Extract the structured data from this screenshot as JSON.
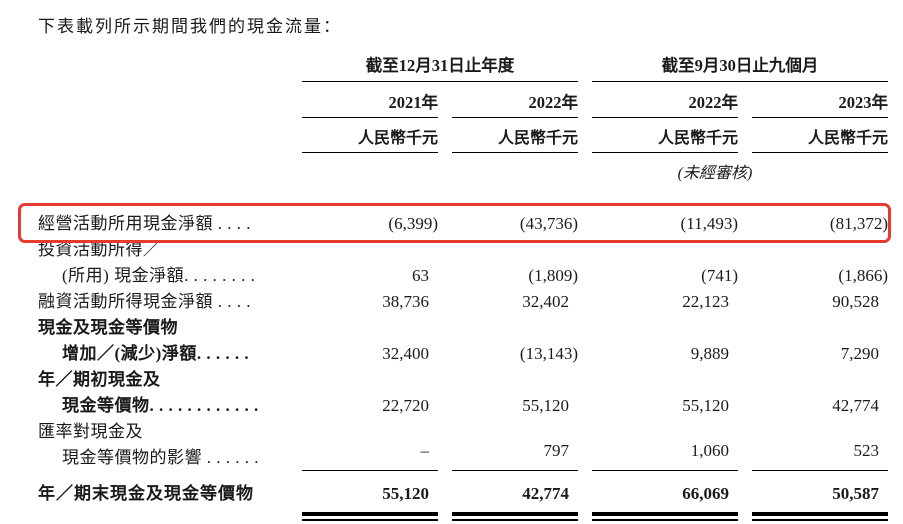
{
  "page": {
    "background": "#ffffff",
    "text_color": "#1a1a1a"
  },
  "title": "下表載列所示期間我們的現金流量：",
  "highlight_color": "#e8392e",
  "table": {
    "groups": [
      {
        "label": "截至12月31日止年度"
      },
      {
        "label": "截至9月30日止九個月"
      }
    ],
    "years": [
      "2021年",
      "2022年",
      "2022年",
      "2023年"
    ],
    "unit_label": "人民幣千元",
    "unaudited_note": "(未經審核)",
    "rows": [
      {
        "label1": "經營活動所用現金淨額 . . . .",
        "values": [
          "(6,399)",
          "(43,736)",
          "(11,493)",
          "(81,372)"
        ],
        "highlighted": true
      },
      {
        "label1": "投資活動所得／",
        "label2": "(所用) 現金淨額. . . . . . . .",
        "values": [
          "63",
          "(1,809)",
          "(741)",
          "(1,866)"
        ]
      },
      {
        "label1": "融資活動所得現金淨額 . . . .",
        "values": [
          "38,736",
          "32,402",
          "22,123",
          "90,528"
        ]
      },
      {
        "label1": "現金及現金等價物",
        "label2": "增加／(減少)淨額. . . . . .",
        "values": [
          "32,400",
          "(13,143)",
          "9,889",
          "7,290"
        ],
        "label_bold": true
      },
      {
        "label1": "年／期初現金及",
        "label2": "現金等價物. . . . . . . . . . . .",
        "values": [
          "22,720",
          "55,120",
          "55,120",
          "42,774"
        ],
        "label_bold": true
      },
      {
        "label1": "匯率對現金及",
        "label2": "現金等價物的影響 . . . . . .",
        "values": [
          "–",
          "797",
          "1,060",
          "523"
        ]
      }
    ],
    "total_row": {
      "label": "年／期末現金及現金等價物",
      "values": [
        "55,120",
        "42,774",
        "66,069",
        "50,587"
      ]
    }
  }
}
